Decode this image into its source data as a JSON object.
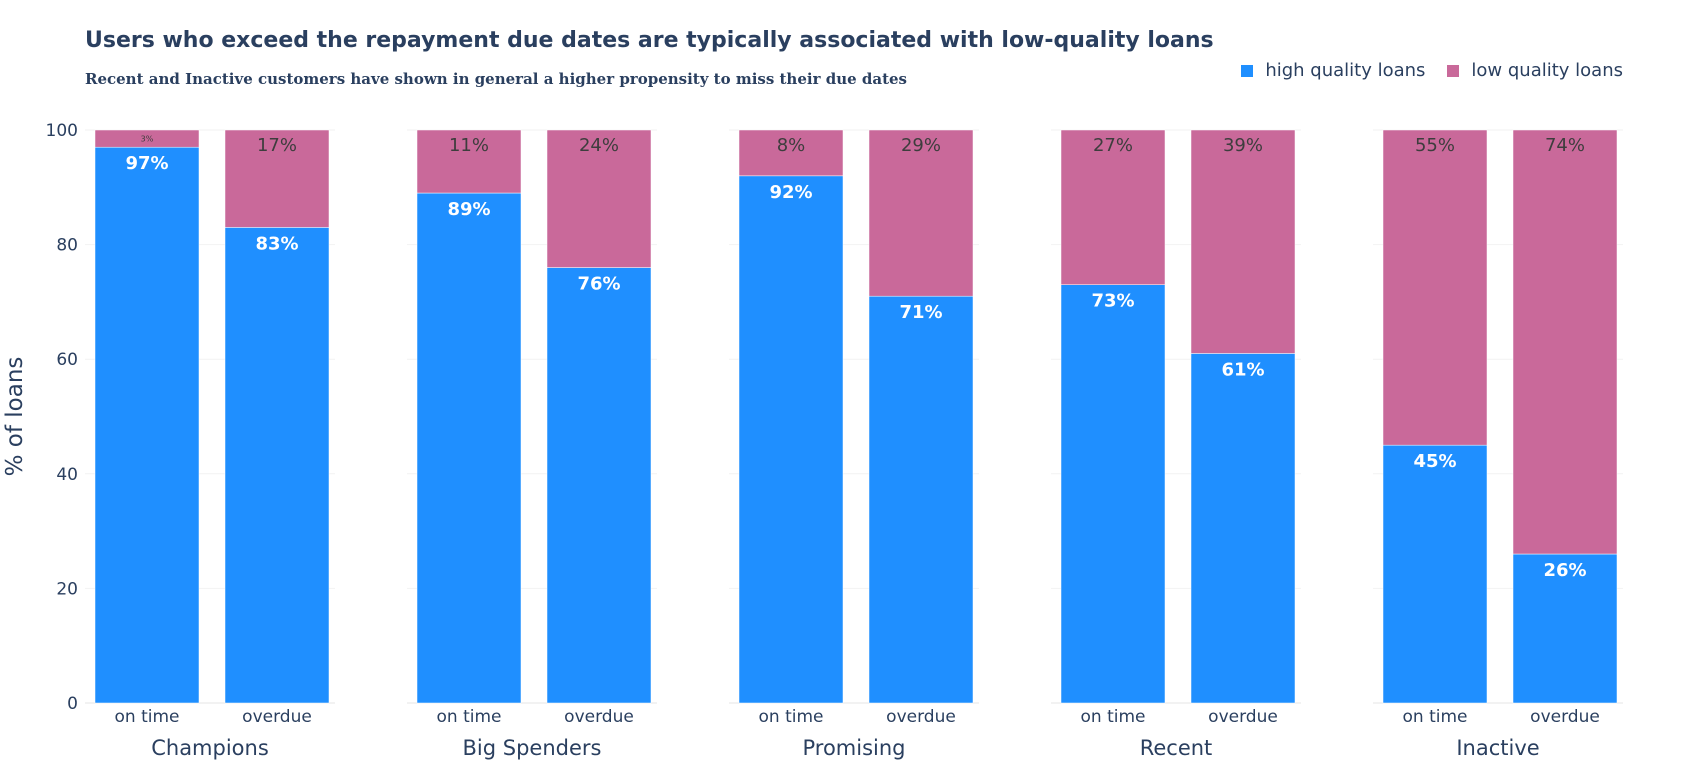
{
  "chart_data": {
    "type": "bar",
    "stacked": true,
    "normalized_percent": true,
    "title": "Users who exceed the repayment due dates are typically associated with low-quality loans",
    "subtitle": "Recent and Inactive customers have shown in general a higher propensity to miss their due dates",
    "ylabel": "% of loans",
    "ylim": [
      0,
      100
    ],
    "yticks": [
      0,
      20,
      40,
      60,
      80,
      100
    ],
    "grid": true,
    "legend_position": "top-right",
    "groups": [
      "Champions",
      "Big Spenders",
      "Promising",
      "Recent",
      "Inactive"
    ],
    "categories": [
      "on time",
      "overdue"
    ],
    "series": [
      {
        "name": "high quality loans",
        "color": "#1f8fff",
        "values": [
          [
            97,
            83
          ],
          [
            89,
            76
          ],
          [
            92,
            71
          ],
          [
            73,
            61
          ],
          [
            45,
            26
          ]
        ],
        "labels": [
          [
            "97%",
            "83%"
          ],
          [
            "89%",
            "76%"
          ],
          [
            "92%",
            "71%"
          ],
          [
            "73%",
            "61%"
          ],
          [
            "45%",
            "26%"
          ]
        ]
      },
      {
        "name": "low quality loans",
        "color": "#c9699a",
        "values": [
          [
            3,
            17
          ],
          [
            11,
            24
          ],
          [
            8,
            29
          ],
          [
            27,
            39
          ],
          [
            55,
            74
          ]
        ],
        "labels": [
          [
            "3%",
            "17%"
          ],
          [
            "11%",
            "24%"
          ],
          [
            "8%",
            "29%"
          ],
          [
            "27%",
            "39%"
          ],
          [
            "55%",
            "74%"
          ]
        ]
      }
    ]
  }
}
